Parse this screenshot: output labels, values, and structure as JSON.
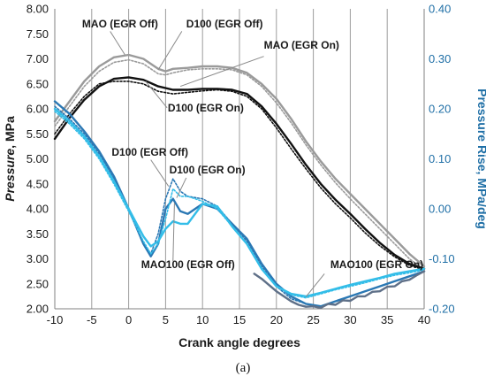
{
  "chart_data": {
    "type": "line",
    "caption": "(a)",
    "xlabel": "Crank angle degrees",
    "ylabel_left": {
      "italic": "Pressure",
      "rest": ", MPa"
    },
    "ylabel_right": "Pressure Rise, MPa/deg",
    "xlim": [
      -10,
      40
    ],
    "ylim_left": [
      2.0,
      8.0
    ],
    "ylim_right": [
      -0.2,
      0.4
    ],
    "x_ticks": [
      -10,
      -5,
      0,
      5,
      10,
      15,
      20,
      25,
      30,
      35,
      40
    ],
    "left_ticks": [
      "2.00",
      "2.50",
      "3.00",
      "3.50",
      "4.00",
      "4.50",
      "5.00",
      "5.50",
      "6.00",
      "6.50",
      "7.00",
      "7.50",
      "8.00"
    ],
    "right_ticks": [
      "-0.20",
      "-0.10",
      "0.00",
      "0.10",
      "0.20",
      "0.30",
      "0.40"
    ],
    "grid": "vertical",
    "colors": {
      "gray": "#9a9a9a",
      "black": "#111111",
      "blue_dark": "#2b78b4",
      "blue_light": "#33bde8",
      "slate": "#5f7088",
      "right_axis": "#1f6fa6"
    },
    "series": [
      {
        "axis": "left",
        "color": "gray",
        "dash": false,
        "x": [
          -10,
          -8,
          -6,
          -4,
          -2,
          0,
          2,
          4,
          5,
          6,
          8,
          10,
          12,
          14,
          16,
          18,
          20,
          22,
          24,
          26,
          28,
          30,
          32,
          34,
          36,
          38,
          40
        ],
        "y": [
          5.75,
          6.15,
          6.55,
          6.85,
          7.03,
          7.08,
          7.0,
          6.8,
          6.75,
          6.8,
          6.82,
          6.85,
          6.85,
          6.82,
          6.72,
          6.5,
          6.2,
          5.8,
          5.35,
          4.95,
          4.6,
          4.3,
          4.0,
          3.7,
          3.4,
          3.1,
          2.85
        ]
      },
      {
        "axis": "left",
        "color": "gray",
        "dash": true,
        "x": [
          -10,
          -8,
          -6,
          -4,
          -2,
          0,
          2,
          4,
          5,
          6,
          8,
          10,
          12,
          14,
          16,
          18,
          20,
          22,
          24,
          26,
          28,
          30,
          32,
          34,
          36,
          38,
          40
        ],
        "y": [
          5.65,
          6.05,
          6.45,
          6.75,
          6.93,
          6.98,
          6.9,
          6.7,
          6.68,
          6.72,
          6.78,
          6.8,
          6.8,
          6.78,
          6.68,
          6.45,
          6.12,
          5.72,
          5.28,
          4.88,
          4.52,
          4.2,
          3.9,
          3.6,
          3.3,
          3.0,
          2.78
        ]
      },
      {
        "axis": "left",
        "color": "black",
        "dash": false,
        "x": [
          -10,
          -8,
          -6,
          -4,
          -2,
          0,
          2,
          4,
          6,
          8,
          10,
          12,
          14,
          16,
          18,
          20,
          22,
          24,
          26,
          28,
          30,
          32,
          34,
          36,
          38,
          40
        ],
        "y": [
          5.4,
          5.82,
          6.18,
          6.45,
          6.6,
          6.63,
          6.58,
          6.45,
          6.38,
          6.38,
          6.4,
          6.4,
          6.38,
          6.3,
          6.05,
          5.7,
          5.3,
          4.88,
          4.5,
          4.18,
          3.9,
          3.6,
          3.32,
          3.08,
          2.9,
          2.8
        ]
      },
      {
        "axis": "left",
        "color": "black",
        "dash": true,
        "x": [
          -10,
          -8,
          -6,
          -4,
          -2,
          0,
          2,
          4,
          6,
          8,
          10,
          12,
          14,
          16,
          18,
          20,
          22,
          24,
          26,
          28,
          30,
          32,
          34,
          36,
          38,
          40
        ],
        "y": [
          5.5,
          5.9,
          6.25,
          6.5,
          6.55,
          6.55,
          6.5,
          6.35,
          6.3,
          6.33,
          6.36,
          6.38,
          6.35,
          6.25,
          6.0,
          5.62,
          5.2,
          4.8,
          4.42,
          4.1,
          3.82,
          3.52,
          3.26,
          3.04,
          2.87,
          2.78
        ]
      },
      {
        "axis": "right",
        "color": "blue_dark",
        "dash": false,
        "x": [
          -10,
          -8,
          -6,
          -4,
          -2,
          0,
          2,
          3,
          4,
          5,
          6,
          7,
          8,
          10,
          12,
          14,
          16,
          18,
          20,
          22,
          24,
          26,
          28,
          30,
          32,
          34,
          36,
          38,
          40
        ],
        "y": [
          0.215,
          0.19,
          0.155,
          0.115,
          0.065,
          0.0,
          -0.07,
          -0.095,
          -0.07,
          0.0,
          0.02,
          -0.005,
          -0.01,
          0.01,
          0.0,
          -0.03,
          -0.06,
          -0.11,
          -0.15,
          -0.175,
          -0.19,
          -0.195,
          -0.185,
          -0.175,
          -0.165,
          -0.155,
          -0.145,
          -0.135,
          -0.125
        ]
      },
      {
        "axis": "right",
        "color": "blue_dark",
        "dash": true,
        "x": [
          -10,
          -8,
          -6,
          -4,
          -2,
          0,
          2,
          3,
          4,
          5,
          6,
          7,
          8,
          10,
          12,
          14,
          16,
          18,
          20,
          22,
          24,
          26,
          28,
          30,
          32,
          34,
          36,
          38,
          40
        ],
        "y": [
          0.205,
          0.18,
          0.15,
          0.11,
          0.06,
          0.0,
          -0.07,
          -0.09,
          -0.05,
          0.02,
          0.06,
          0.035,
          0.025,
          0.02,
          0.005,
          -0.03,
          -0.065,
          -0.115,
          -0.155,
          -0.18,
          -0.19,
          -0.195,
          -0.185,
          -0.175,
          -0.165,
          -0.155,
          -0.145,
          -0.135,
          -0.125
        ]
      },
      {
        "axis": "right",
        "color": "blue_light",
        "dash": false,
        "x": [
          -10,
          -8,
          -6,
          -4,
          -2,
          0,
          2,
          3,
          4,
          5,
          6,
          7,
          8,
          10,
          12,
          14,
          16,
          18,
          20,
          22,
          24,
          26,
          28,
          30,
          32,
          34,
          36,
          38,
          40
        ],
        "y": [
          0.2,
          0.175,
          0.145,
          0.105,
          0.055,
          0.0,
          -0.055,
          -0.075,
          -0.065,
          -0.04,
          -0.025,
          -0.03,
          -0.03,
          0.01,
          0.005,
          -0.035,
          -0.07,
          -0.12,
          -0.155,
          -0.17,
          -0.175,
          -0.168,
          -0.16,
          -0.152,
          -0.145,
          -0.138,
          -0.13,
          -0.125,
          -0.12
        ]
      },
      {
        "axis": "right",
        "color": "blue_light",
        "dash": true,
        "x": [
          -10,
          -8,
          -6,
          -4,
          -2,
          0,
          2,
          3,
          4,
          5,
          6,
          7,
          8,
          10,
          12,
          14,
          16,
          18,
          20,
          22,
          24,
          26,
          28,
          30,
          32,
          34,
          36,
          38,
          40
        ],
        "y": [
          0.195,
          0.17,
          0.14,
          0.1,
          0.05,
          -0.005,
          -0.065,
          -0.09,
          -0.07,
          -0.02,
          0.04,
          0.025,
          0.025,
          0.015,
          0.0,
          -0.035,
          -0.07,
          -0.12,
          -0.155,
          -0.172,
          -0.178,
          -0.17,
          -0.162,
          -0.155,
          -0.148,
          -0.14,
          -0.133,
          -0.128,
          -0.122
        ]
      },
      {
        "axis": "right",
        "color": "slate",
        "dash": false,
        "x": [
          17,
          18,
          20,
          22,
          23,
          24,
          25,
          26,
          27,
          28,
          29,
          30,
          31,
          32,
          33,
          34,
          35,
          36,
          37,
          38,
          39,
          40
        ],
        "y": [
          -0.13,
          -0.14,
          -0.165,
          -0.185,
          -0.192,
          -0.196,
          -0.195,
          -0.198,
          -0.19,
          -0.192,
          -0.183,
          -0.184,
          -0.175,
          -0.175,
          -0.166,
          -0.165,
          -0.156,
          -0.155,
          -0.145,
          -0.142,
          -0.133,
          -0.125
        ]
      }
    ],
    "annotations": [
      {
        "text": "MAO (EGR Off)",
        "tx": -6.3,
        "ty": 7.63,
        "ax": -0.5,
        "ay": 7.08,
        "lx": -2.5,
        "ly": 7.55
      },
      {
        "text": "D100 (EGR Off)",
        "tx": 7.8,
        "ty": 7.63,
        "ax": 4.0,
        "ay": 6.78,
        "lx": 7.2,
        "ly": 7.55
      },
      {
        "text": "MAO (EGR On)",
        "tx": 18.3,
        "ty": 7.2,
        "ax": 7.0,
        "ay": 6.45,
        "lx": 18.3,
        "ly": 7.05
      },
      {
        "text": "D100 (EGR On)",
        "tx": 5.3,
        "ty": 5.95,
        "ax": 2.3,
        "ay": 6.55,
        "lx": 5.2,
        "ly": 6.02
      },
      {
        "text": "D100 (EGR Off)",
        "tx": -2.3,
        "ty": 5.06,
        "ax": 5.4,
        "ay": 4.45,
        "lx": 3.0,
        "ly": 4.98
      },
      {
        "text": "D100 (EGR On)",
        "tx": 5.5,
        "ty": 4.71,
        "ax": 6.5,
        "ay": 4.22,
        "lx": 7.8,
        "ly": 4.62
      },
      {
        "text": "MAO100 (EGR Off)",
        "tx": 1.7,
        "ty": 2.81,
        "ax": 6.2,
        "ay": 4.12,
        "lx": 6.0,
        "ly": 2.95
      },
      {
        "text": "MAO100 (EGR On)",
        "tx": 27.3,
        "ty": 2.81,
        "ax": 24.0,
        "ay": 2.24,
        "lx": 26.5,
        "ly": 2.7
      }
    ]
  }
}
